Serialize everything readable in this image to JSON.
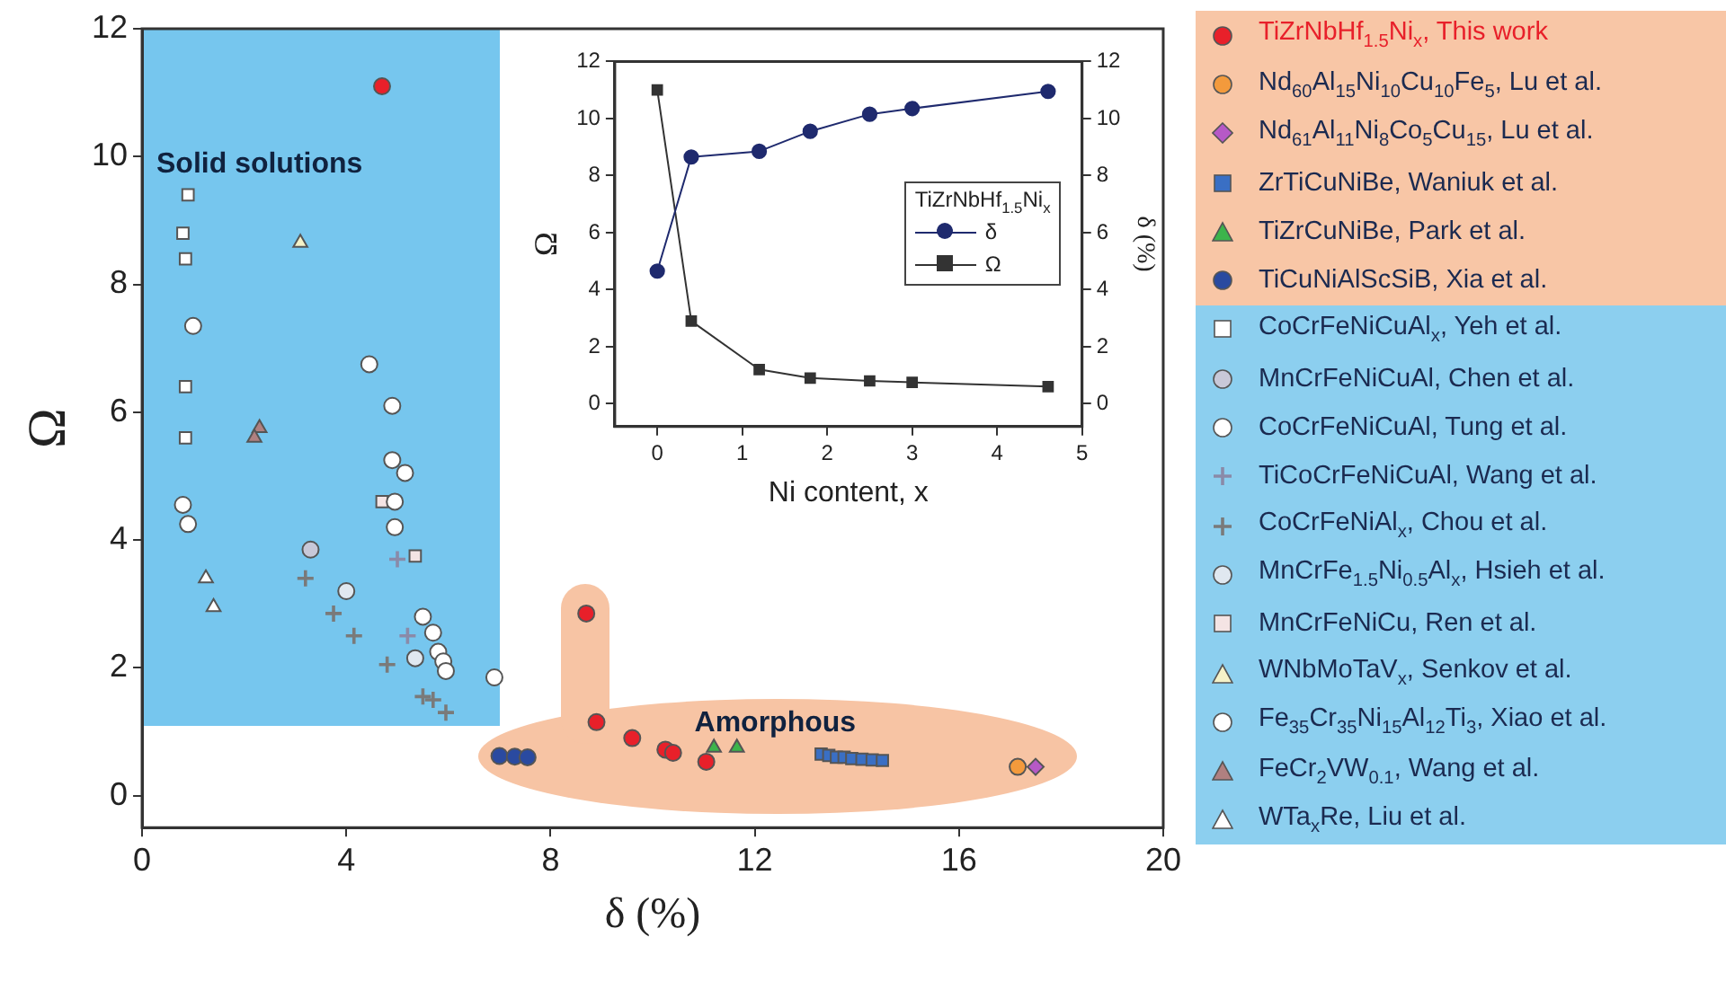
{
  "chart_data": [
    {
      "type": "scatter",
      "xlabel": "δ (%)",
      "ylabel": "Ω",
      "xlim": [
        0,
        20
      ],
      "ylim": [
        -0.5,
        12
      ],
      "xticks": [
        0,
        4,
        8,
        12,
        16,
        20
      ],
      "yticks": [
        0,
        2,
        4,
        6,
        8,
        10,
        12
      ],
      "legend": "right",
      "annotations": [
        "Solid solutions",
        "Amorphous"
      ],
      "series": [
        {
          "name": "TiZrNbHf$_{1.5}$Ni$_{x}$, This work",
          "color": "#e8202a",
          "marker": "circle",
          "x": [
            4.7,
            8.7,
            8.9,
            9.6,
            10.25,
            10.4,
            11.05
          ],
          "values": [
            11.1,
            2.85,
            1.15,
            0.9,
            0.72,
            0.67,
            0.53
          ]
        },
        {
          "name": "Nd$_{60}$Al$_{15}$Ni$_{10}$Cu$_{10}$Fe$_{5}$, Lu et al.",
          "color": "#f39a3c",
          "marker": "circle",
          "x": [
            17.15
          ],
          "values": [
            0.45
          ]
        },
        {
          "name": "Nd$_{61}$Al$_{11}$Ni$_{8}$Co$_{5}$Cu$_{15}$, Lu et al.",
          "color": "#b659c6",
          "marker": "diamond",
          "x": [
            17.5
          ],
          "values": [
            0.45
          ]
        },
        {
          "name": "ZrTiCuNiBe, Waniuk et al.",
          "color": "#3a6fc4",
          "marker": "square",
          "x": [
            13.3,
            13.45,
            13.6,
            13.75,
            13.9,
            14.1,
            14.3,
            14.5
          ],
          "values": [
            0.65,
            0.63,
            0.6,
            0.6,
            0.58,
            0.57,
            0.56,
            0.55
          ]
        },
        {
          "name": "TiZrCuNiBe, Park et al.",
          "color": "#3cb44b",
          "marker": "triangle",
          "x": [
            11.2,
            11.65
          ],
          "values": [
            0.75,
            0.75
          ]
        },
        {
          "name": "TiCuNiAlScSiB, Xia et al.",
          "color": "#2a4aa0",
          "marker": "circle",
          "x": [
            7.0,
            7.3,
            7.55
          ],
          "values": [
            0.62,
            0.61,
            0.6
          ]
        },
        {
          "name": "CoCrFeNiCuAl$_{x}$, Yeh et al.",
          "color": "#ffffff",
          "marker": "square",
          "x": [
            0.9,
            0.8,
            0.85,
            0.85,
            0.85
          ],
          "values": [
            9.4,
            8.8,
            8.4,
            6.4,
            5.6
          ]
        },
        {
          "name": "MnCrFeNiCuAl, Chen et al.",
          "color": "#c8c8d8",
          "marker": "circle",
          "x": [
            3.3
          ],
          "values": [
            3.85
          ]
        },
        {
          "name": "CoCrFeNiCuAl, Tung et al.",
          "color": "#ffffff",
          "marker": "circle",
          "x": [
            1.0,
            4.45,
            4.9,
            4.9,
            5.15,
            4.95,
            4.95,
            0.8
          ],
          "values": [
            7.35,
            6.75,
            6.1,
            5.25,
            5.05,
            4.6,
            4.2,
            4.55
          ]
        },
        {
          "name": "TiCoCrFeNiCuAl, Wang et al.",
          "color": "#8a8aa8",
          "marker": "cross",
          "x": [
            5.0,
            5.2
          ],
          "values": [
            3.7,
            2.5
          ]
        },
        {
          "name": "CoCrFeNiAl$_{x}$, Chou et al.",
          "color": "#7a7a7a",
          "marker": "cross",
          "x": [
            3.2,
            3.75,
            4.15,
            4.8,
            5.5,
            5.7,
            5.95
          ],
          "values": [
            3.4,
            2.85,
            2.5,
            2.05,
            1.55,
            1.5,
            1.3
          ]
        },
        {
          "name": "MnCrFe$_{1.5}$Ni$_{0.5}$Al$_{x}$, Hsieh et al.",
          "color": "#e0e8f0",
          "marker": "circle",
          "x": [
            4.0,
            5.35
          ],
          "values": [
            3.2,
            2.15
          ]
        },
        {
          "name": "MnCrFeNiCu, Ren et al.",
          "color": "#f4e4e4",
          "marker": "square",
          "x": [
            4.7,
            5.35
          ],
          "values": [
            4.6,
            3.75
          ]
        },
        {
          "name": "WNbMoTaV$_{x}$, Senkov et al.",
          "color": "#f5f2c8",
          "marker": "triangle",
          "x": [
            3.1
          ],
          "values": [
            8.65
          ]
        },
        {
          "name": "Fe$_{35}$Cr$_{35}$Ni$_{15}$Al$_{12}$Ti$_{3}$, Xiao et al.",
          "color": "#ffffff",
          "marker": "circle",
          "x": [
            0.9,
            5.5,
            5.7,
            5.8,
            5.9,
            5.95,
            6.9
          ],
          "values": [
            4.25,
            2.8,
            2.55,
            2.25,
            2.1,
            1.95,
            1.85
          ]
        },
        {
          "name": "FeCr$_{2}$VW$_{0.1}$, Wang et al.",
          "color": "#b08080",
          "marker": "triangle",
          "x": [
            2.3,
            2.2
          ],
          "values": [
            5.75,
            5.6
          ]
        },
        {
          "name": "WTa$_{x}$Re, Liu et al.",
          "color": "#ffffff",
          "marker": "triangle",
          "x": [
            1.25,
            1.4
          ],
          "values": [
            3.4,
            2.95
          ]
        }
      ]
    },
    {
      "type": "line",
      "xlabel": "Ni content, x",
      "ylabel": "Ω",
      "y2label": "δ (%)",
      "legend_title": "TiZrNbHf$_{1.5}$Ni$_{x}$",
      "legend": "right",
      "xlim": [
        -0.5,
        5
      ],
      "ylim": [
        -0.8,
        12
      ],
      "y2lim": [
        -0.8,
        12
      ],
      "xticks": [
        0,
        1,
        2,
        3,
        4,
        5
      ],
      "yticks": [
        0,
        2,
        4,
        6,
        8,
        10,
        12
      ],
      "y2ticks": [
        0,
        2,
        4,
        6,
        8,
        10,
        12
      ],
      "x": [
        0,
        0.4,
        1.2,
        1.8,
        2.5,
        3,
        4.6
      ],
      "series": [
        {
          "name": "δ",
          "color": "#1f2a6e",
          "marker": "circle",
          "values": [
            4.65,
            8.65,
            8.85,
            9.55,
            10.15,
            10.35,
            10.95
          ]
        },
        {
          "name": "Ω",
          "color": "#333333",
          "marker": "square",
          "values": [
            11.0,
            2.9,
            1.2,
            0.9,
            0.8,
            0.75,
            0.6
          ]
        }
      ]
    }
  ]
}
